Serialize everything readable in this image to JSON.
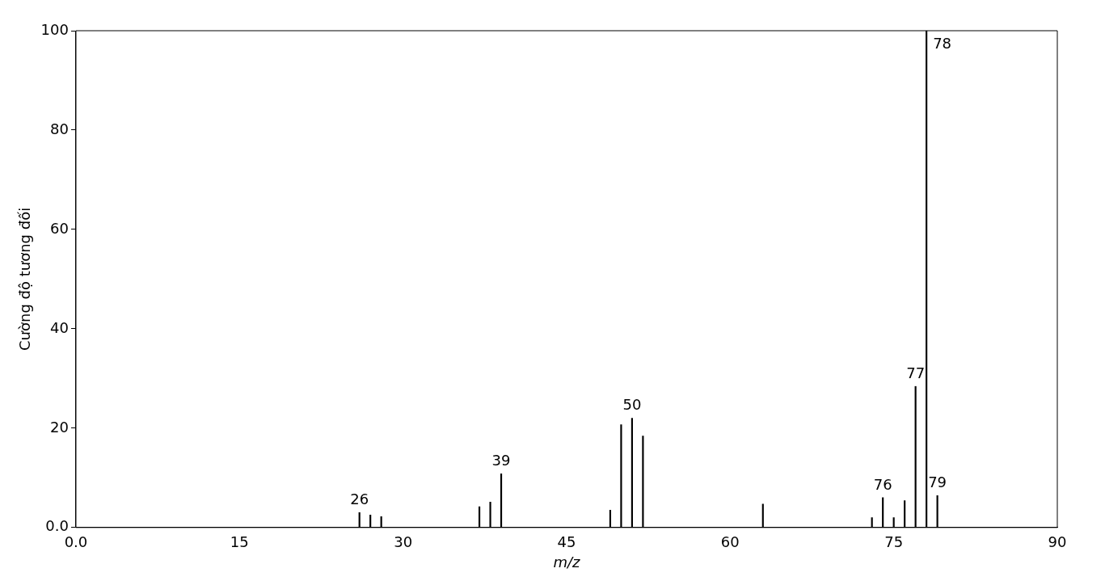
{
  "chart_data": {
    "type": "bar",
    "xlabel": "m/z",
    "ylabel": "Cường độ tương đối",
    "x": [
      26,
      27,
      28,
      37,
      38,
      39,
      49,
      50,
      51,
      52,
      63,
      73,
      74,
      75,
      76,
      77,
      78,
      79
    ],
    "values": [
      3,
      2.5,
      2.2,
      4.2,
      5.1,
      10.8,
      3.5,
      20.7,
      22,
      18.4,
      4.7,
      2,
      6,
      2,
      5.4,
      28.4,
      100,
      6.4
    ],
    "color": "#000000",
    "xlim": [
      0,
      90
    ],
    "xticks": [
      {
        "value": 0,
        "label": "0.0"
      },
      15,
      30,
      45,
      60,
      75,
      90
    ],
    "ylim": [
      0,
      100
    ],
    "yticks": [
      {
        "value": 0,
        "label": "0.0"
      },
      20,
      40,
      60,
      80,
      100
    ],
    "grid": false,
    "legend": false,
    "annotations": [
      {
        "text": "26",
        "x": 26,
        "y": 3
      },
      {
        "text": "39",
        "x": 39,
        "y": 10.8
      },
      {
        "text": "50",
        "x": 51,
        "y": 22
      },
      {
        "text": "76",
        "x": 74,
        "y": 6
      },
      {
        "text": "77",
        "x": 77,
        "y": 28.4
      },
      {
        "text": "78",
        "x": 78,
        "y": 100
      },
      {
        "text": "79",
        "x": 79,
        "y": 6.4
      }
    ]
  }
}
